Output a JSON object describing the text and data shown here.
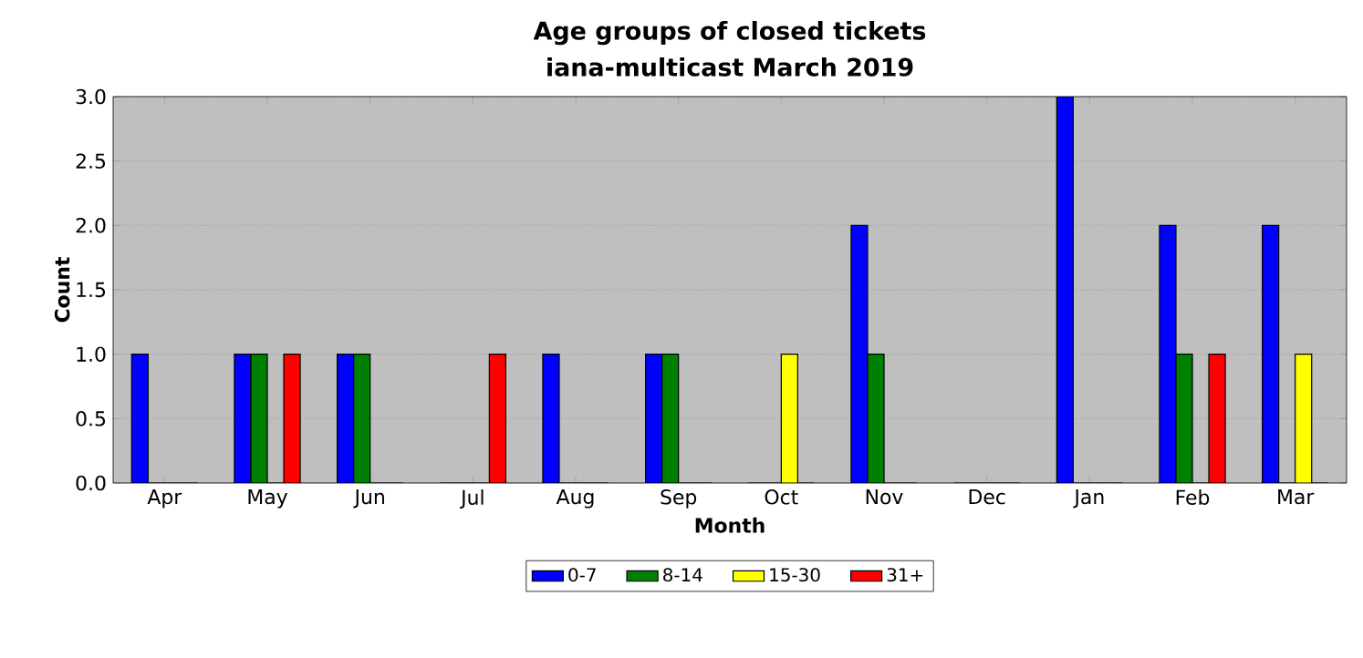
{
  "chart_data": {
    "type": "bar",
    "title": "Age groups of closed tickets",
    "subtitle": "iana-multicast March 2019",
    "xlabel": "Month",
    "ylabel": "Count",
    "categories": [
      "Apr",
      "May",
      "Jun",
      "Jul",
      "Aug",
      "Sep",
      "Oct",
      "Nov",
      "Dec",
      "Jan",
      "Feb",
      "Mar"
    ],
    "series": [
      {
        "name": "0-7",
        "color": "#0000ff",
        "values": [
          1,
          1,
          1,
          0,
          1,
          1,
          0,
          2,
          0,
          3,
          2,
          2
        ]
      },
      {
        "name": "8-14",
        "color": "#008000",
        "values": [
          0,
          1,
          1,
          0,
          0,
          1,
          0,
          1,
          0,
          0,
          1,
          0
        ]
      },
      {
        "name": "15-30",
        "color": "#ffff00",
        "values": [
          0,
          0,
          0,
          0,
          0,
          0,
          1,
          0,
          0,
          0,
          0,
          1
        ]
      },
      {
        "name": "31+",
        "color": "#ff0000",
        "values": [
          0,
          1,
          0,
          1,
          0,
          0,
          0,
          0,
          0,
          0,
          1,
          0
        ]
      }
    ],
    "ylim": [
      0,
      3
    ],
    "yticks": [
      {
        "value": 0,
        "label": "0.0"
      },
      {
        "value": 0.5,
        "label": "0.5"
      },
      {
        "value": 1,
        "label": "1.0"
      },
      {
        "value": 1.5,
        "label": "1.5"
      },
      {
        "value": 2,
        "label": "2.0"
      },
      {
        "value": 2.5,
        "label": "2.5"
      },
      {
        "value": 3,
        "label": "3.0"
      }
    ],
    "grid": "y",
    "legend": "bottom"
  }
}
